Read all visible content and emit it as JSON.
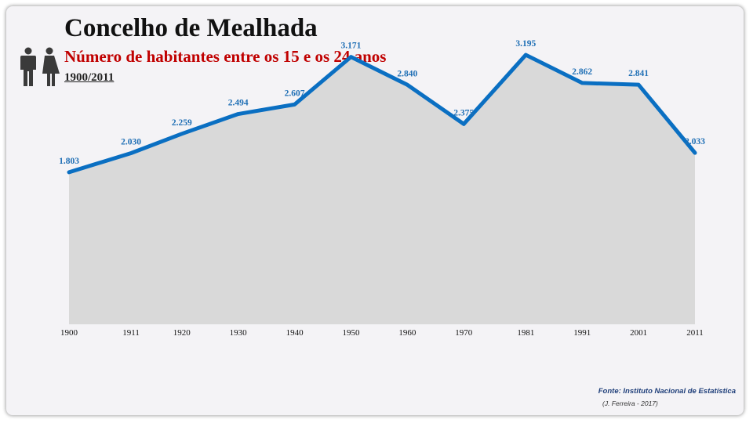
{
  "header": {
    "title": "Concelho de Mealhada",
    "subtitle": "Número de habitantes entre os 15 e os 24 anos",
    "period": "1900/2011"
  },
  "icons": {
    "people": "man-woman-icon"
  },
  "colors": {
    "line": "#0a6fc2",
    "area": "#d9d9d9",
    "label": "#1f6fb5",
    "title": "#111111",
    "subtitle": "#c00000"
  },
  "chart_data": {
    "type": "area",
    "title": "Número de habitantes entre os 15 e os 24 anos",
    "xlabel": "",
    "ylabel": "",
    "categories": [
      "1900",
      "1911",
      "1920",
      "1930",
      "1940",
      "1950",
      "1960",
      "1970",
      "1981",
      "1991",
      "2001",
      "2011"
    ],
    "values": [
      1803,
      2030,
      2259,
      2494,
      2607,
      3171,
      2840,
      2375,
      3195,
      2862,
      2841,
      2033
    ],
    "value_labels": [
      "1.803",
      "2.030",
      "2.259",
      "2.494",
      "2.607",
      "3.171",
      "2.840",
      "2.375",
      "3.195",
      "2.862",
      "2.841",
      "2.033"
    ],
    "ylim": [
      0,
      3400
    ],
    "grid": false,
    "legend": "none"
  },
  "footer": {
    "source": "Fonte: Instituto Nacional de Estatística",
    "author": "(J. Ferreira - 2017)"
  }
}
